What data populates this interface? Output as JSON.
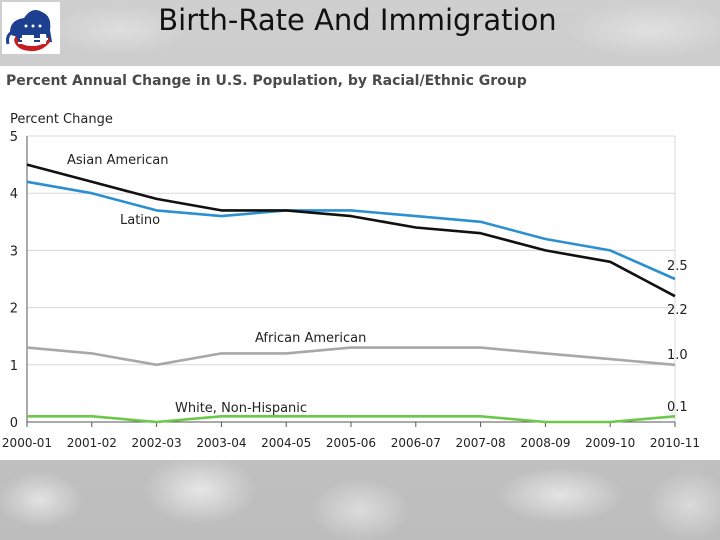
{
  "slide": {
    "title": "Birth-Rate And Immigration",
    "logo_icon": "republican-elephant-logo-icon"
  },
  "colors": {
    "asian": "#111111",
    "latino": "#2b8fd0",
    "african": "#a8a8a8",
    "white": "#6cc84a",
    "grid": "#d9d9d9"
  },
  "chart_data": {
    "type": "line",
    "title": "Percent Annual Change in U.S. Population, by Racial/Ethnic Group",
    "ylabel": "Percent Change",
    "xlabel": "",
    "ylim": [
      0,
      5
    ],
    "yticks": [
      "0",
      "1",
      "2",
      "3",
      "4",
      "5"
    ],
    "categories": [
      "2000-01",
      "2001-02",
      "2002-03",
      "2003-04",
      "2004-05",
      "2005-06",
      "2006-07",
      "2007-08",
      "2008-09",
      "2009-10",
      "2010-11"
    ],
    "grid": true,
    "series": [
      {
        "name": "Asian American",
        "color_key": "asian",
        "values": [
          4.5,
          4.2,
          3.9,
          3.7,
          3.7,
          3.6,
          3.4,
          3.3,
          3.0,
          2.8,
          2.2
        ],
        "end_label": "2.2"
      },
      {
        "name": "Latino",
        "color_key": "latino",
        "values": [
          4.2,
          4.0,
          3.7,
          3.6,
          3.7,
          3.7,
          3.6,
          3.5,
          3.2,
          3.0,
          2.5
        ],
        "end_label": "2.5"
      },
      {
        "name": "African American",
        "color_key": "african",
        "values": [
          1.3,
          1.2,
          1.0,
          1.2,
          1.2,
          1.3,
          1.3,
          1.3,
          1.2,
          1.1,
          1.0
        ],
        "end_label": "1.0"
      },
      {
        "name": "White, Non-Hispanic",
        "color_key": "white",
        "values": [
          0.1,
          0.1,
          0.0,
          0.1,
          0.1,
          0.1,
          0.1,
          0.1,
          0.0,
          0.0,
          0.1
        ],
        "end_label": "0.1"
      }
    ]
  }
}
